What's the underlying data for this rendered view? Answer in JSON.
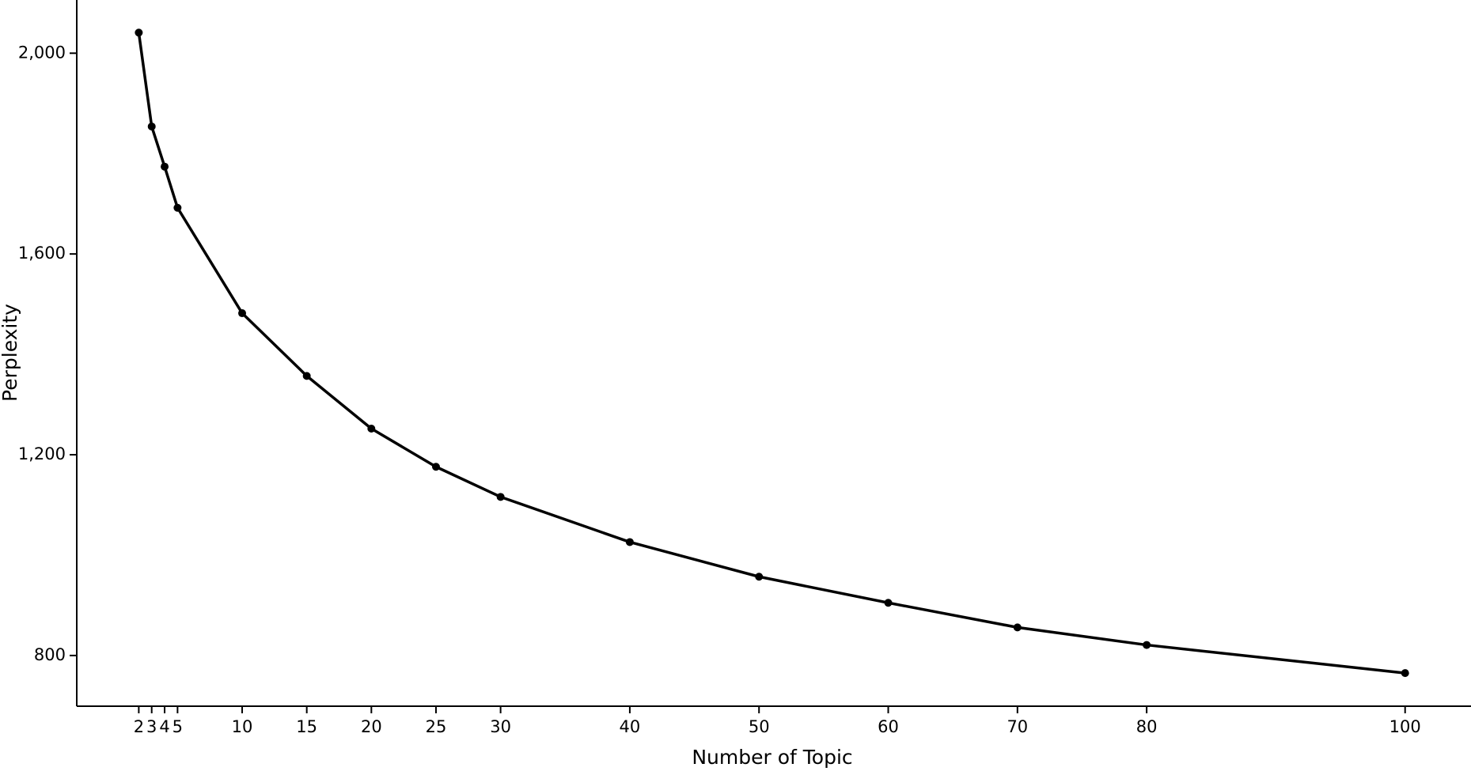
{
  "chart_data": {
    "type": "line",
    "xlabel": "Number of Topic",
    "ylabel": "Perplexity",
    "x": [
      2,
      3,
      4,
      5,
      10,
      15,
      20,
      25,
      30,
      40,
      50,
      60,
      70,
      80,
      100
    ],
    "series": [
      {
        "color": "#000000",
        "values": [
          2041,
          1854,
          1774,
          1692,
          1482,
          1357,
          1252,
          1176,
          1116,
          1026,
          957,
          905,
          856,
          821,
          765
        ]
      }
    ],
    "xlim": [
      -2.8,
      105.1
    ],
    "ylim": [
      699,
      2106
    ],
    "xticks": [
      2,
      3,
      4,
      5,
      10,
      15,
      20,
      25,
      30,
      40,
      50,
      60,
      70,
      80,
      100
    ],
    "yticks": [
      {
        "value": 800,
        "label": "800"
      },
      {
        "value": 1200,
        "label": "1,200"
      },
      {
        "value": 1600,
        "label": "1,600"
      },
      {
        "value": 2000,
        "label": "2,000"
      }
    ],
    "grid": false
  }
}
